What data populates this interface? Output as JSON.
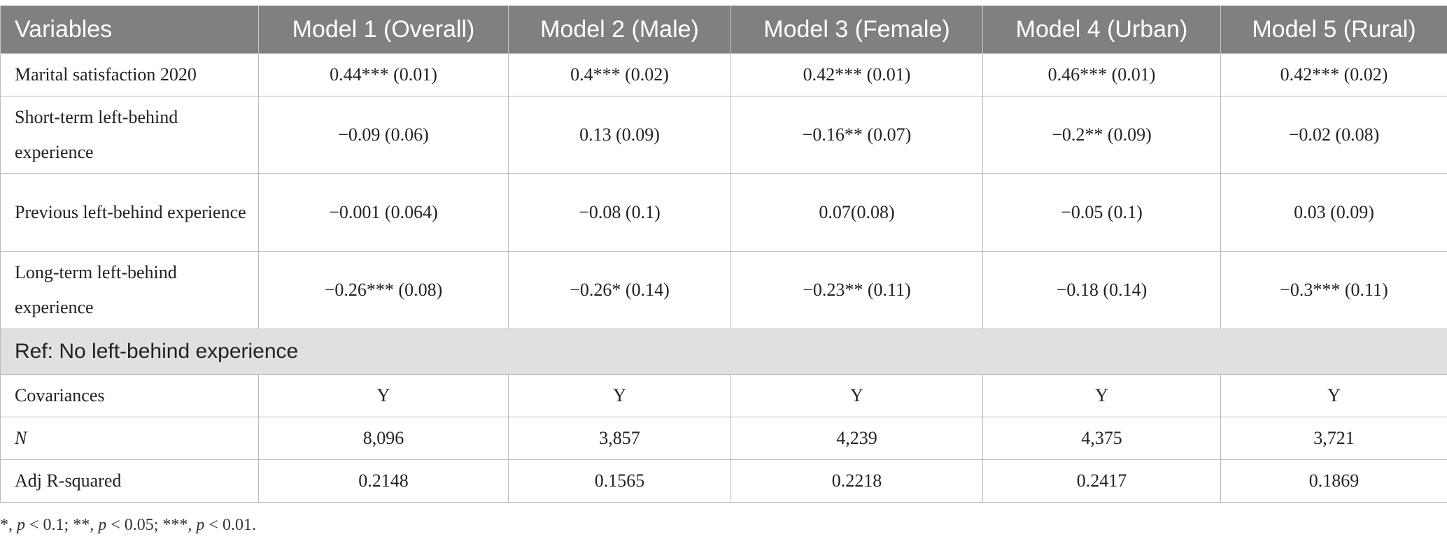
{
  "table": {
    "headers": [
      "Variables",
      "Model 1 (Overall)",
      "Model 2 (Male)",
      "Model 3 (Female)",
      "Model 4 (Urban)",
      "Model 5 (Rural)"
    ],
    "rows": [
      {
        "label": "Marital satisfaction 2020",
        "cells": [
          "0.44*** (0.01)",
          "0.4*** (0.02)",
          "0.42*** (0.01)",
          "0.46*** (0.01)",
          "0.42*** (0.02)"
        ]
      },
      {
        "label": "Short-term left-behind experience",
        "cells": [
          "−0.09 (0.06)",
          "0.13 (0.09)",
          "−0.16** (0.07)",
          "−0.2** (0.09)",
          "−0.02 (0.08)"
        ]
      },
      {
        "label": "Previous left-behind experience",
        "cells": [
          "−0.001 (0.064)",
          "−0.08 (0.1)",
          "0.07(0.08)",
          "−0.05 (0.1)",
          "0.03 (0.09)"
        ]
      },
      {
        "label": "Long-term left-behind experience",
        "cells": [
          "−0.26*** (0.08)",
          "−0.26* (0.14)",
          "−0.23** (0.11)",
          "−0.18 (0.14)",
          "−0.3*** (0.11)"
        ]
      }
    ],
    "reference_row": "Ref: No left-behind experience",
    "bottom_rows": [
      {
        "label": "Covariances",
        "cells": [
          "Y",
          "Y",
          "Y",
          "Y",
          "Y"
        ]
      },
      {
        "label": "N",
        "cells": [
          "8,096",
          "3,857",
          "4,239",
          "4,375",
          "3,721"
        ]
      },
      {
        "label": "Adj R-squared",
        "cells": [
          "0.2148",
          "0.1565",
          "0.2218",
          "0.2417",
          "0.1869"
        ]
      }
    ]
  },
  "footnote": {
    "star1": "*, ",
    "p1": "p",
    "t1": " < 0.1; **, ",
    "p2": "p",
    "t2": " < 0.05; ***, ",
    "p3": "p",
    "t3": " < 0.01."
  },
  "colors": {
    "header_bg": "#808080",
    "ref_row_bg": "#e0e0e0",
    "border": "#b9b9b9"
  }
}
